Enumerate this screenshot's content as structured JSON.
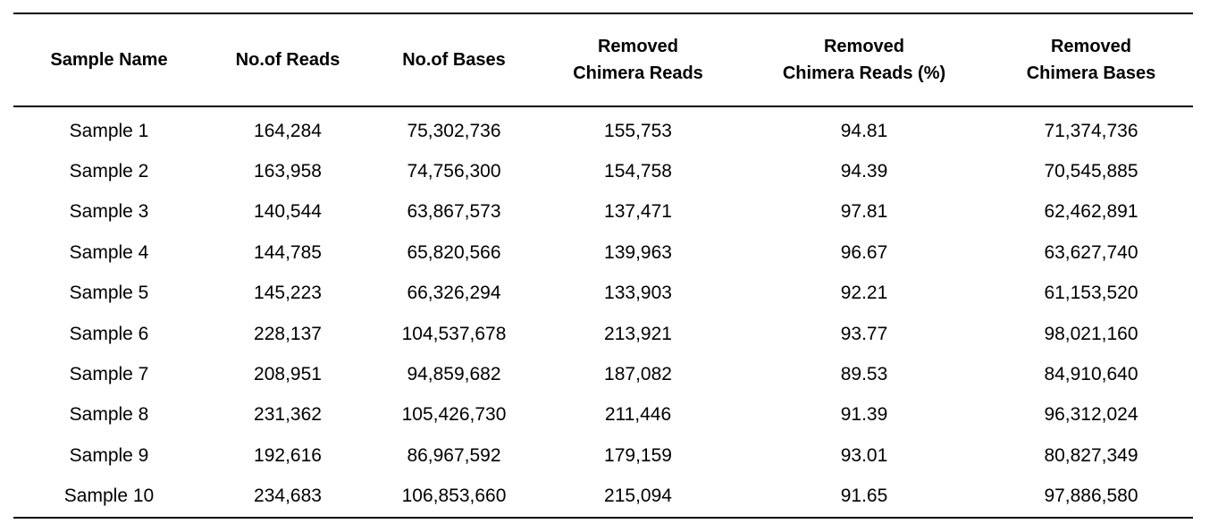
{
  "table": {
    "headers": [
      [
        "Sample Name"
      ],
      [
        "No.of Reads"
      ],
      [
        "No.of Bases"
      ],
      [
        "Removed",
        "Chimera Reads"
      ],
      [
        "Removed",
        "Chimera Reads (%)"
      ],
      [
        "Removed",
        "Chimera Bases"
      ]
    ],
    "rows": [
      [
        "Sample 1",
        "164,284",
        "75,302,736",
        "155,753",
        "94.81",
        "71,374,736"
      ],
      [
        "Sample 2",
        "163,958",
        "74,756,300",
        "154,758",
        "94.39",
        "70,545,885"
      ],
      [
        "Sample 3",
        "140,544",
        "63,867,573",
        "137,471",
        "97.81",
        "62,462,891"
      ],
      [
        "Sample 4",
        "144,785",
        "65,820,566",
        "139,963",
        "96.67",
        "63,627,740"
      ],
      [
        "Sample 5",
        "145,223",
        "66,326,294",
        "133,903",
        "92.21",
        "61,153,520"
      ],
      [
        "Sample 6",
        "228,137",
        "104,537,678",
        "213,921",
        "93.77",
        "98,021,160"
      ],
      [
        "Sample 7",
        "208,951",
        "94,859,682",
        "187,082",
        "89.53",
        "84,910,640"
      ],
      [
        "Sample 8",
        "231,362",
        "105,426,730",
        "211,446",
        "91.39",
        "96,312,024"
      ],
      [
        "Sample 9",
        "192,616",
        "86,967,592",
        "179,159",
        "93.01",
        "80,827,349"
      ],
      [
        "Sample 10",
        "234,683",
        "106,853,660",
        "215,094",
        "91.65",
        "97,886,580"
      ]
    ]
  }
}
